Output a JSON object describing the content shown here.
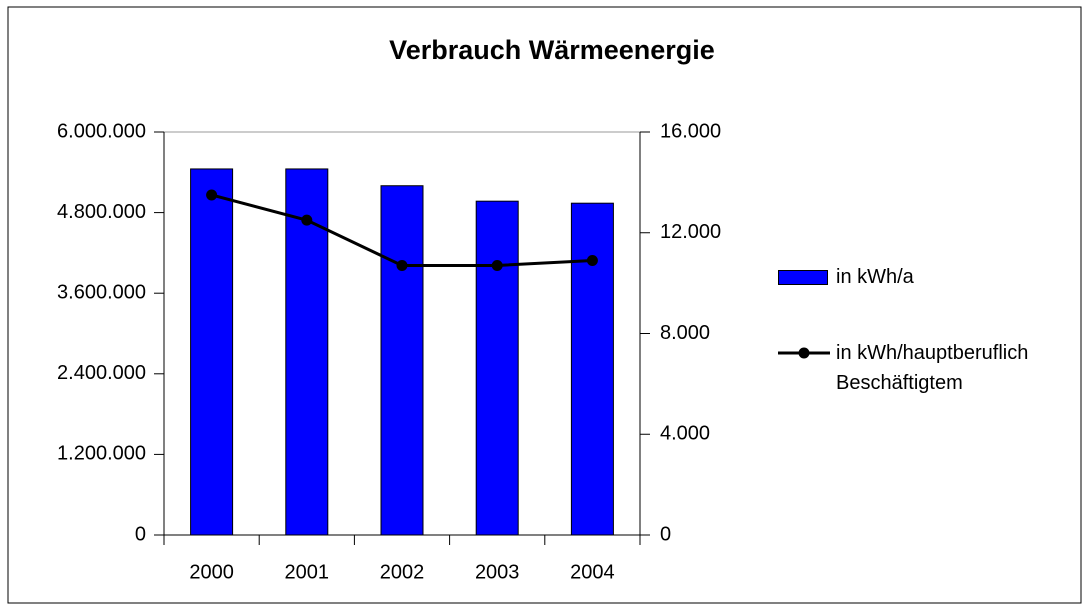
{
  "chart_data": {
    "type": "bar",
    "title": "Verbrauch Wärmeenergie",
    "categories": [
      "2000",
      "2001",
      "2002",
      "2003",
      "2004"
    ],
    "series": [
      {
        "name": "in kWh/a",
        "type": "bar",
        "color": "#0000ff",
        "values": [
          5450000,
          5450000,
          5200000,
          4970000,
          4940000
        ]
      },
      {
        "name": "in kWh/hauptberuflich Beschäftigtem",
        "type": "line",
        "axis": "y2",
        "color": "#000000",
        "values": [
          13500,
          12500,
          10700,
          10700,
          10900
        ]
      }
    ],
    "ylim": [
      0,
      6000000
    ],
    "yticks": [
      0,
      {
        "value": 1200000,
        "label": "1.200.000"
      },
      {
        "value": 2400000,
        "label": "2.400.000"
      },
      {
        "value": 3600000,
        "label": "3.600.000"
      },
      {
        "value": 4800000,
        "label": "4.800.000"
      },
      {
        "value": 6000000,
        "label": "6.000.000"
      }
    ],
    "y2lim": [
      0,
      16000
    ],
    "y2ticks": [
      0,
      {
        "value": 4000,
        "label": "4.000"
      },
      {
        "value": 8000,
        "label": "8.000"
      },
      {
        "value": 12000,
        "label": "12.000"
      },
      {
        "value": 16000,
        "label": "16.000"
      }
    ],
    "legend": "right"
  }
}
